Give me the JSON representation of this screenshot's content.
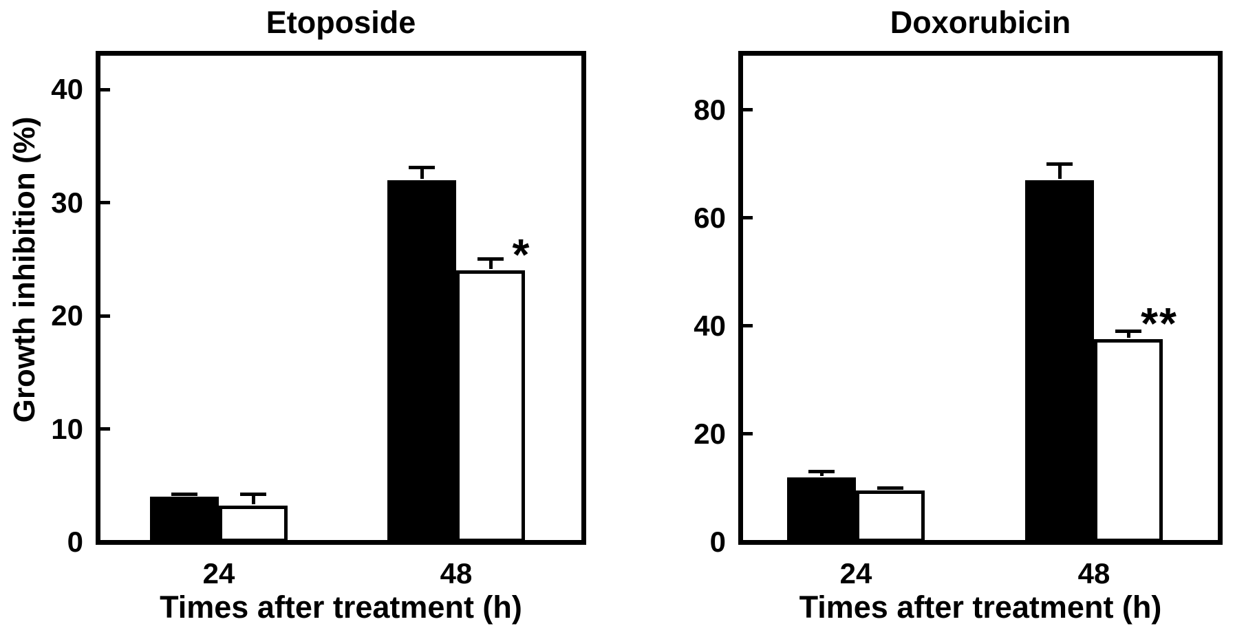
{
  "figure": {
    "background": "#ffffff",
    "bar_outline_color": "#000000",
    "text_color": "#000000"
  },
  "chart_data": [
    {
      "type": "bar",
      "title": "Etoposide",
      "ylabel": "Growth inhibition (%)",
      "xlabel": "Times after treatment (h)",
      "categories": [
        "24",
        "48"
      ],
      "series": [
        {
          "name": "filled-black-bar",
          "fill": "#000000",
          "values": [
            4,
            32
          ],
          "errors": [
            0.2,
            1.1
          ]
        },
        {
          "name": "open-white-bar",
          "fill": "#ffffff",
          "values": [
            3.2,
            24
          ],
          "errors": [
            1.0,
            1.0
          ]
        }
      ],
      "annotations": [
        {
          "category_index": 1,
          "series_index": 1,
          "text": "*"
        }
      ],
      "yticks": [
        0,
        10,
        20,
        30,
        40
      ],
      "ylim": [
        0,
        43
      ],
      "grid": false,
      "legend": "none"
    },
    {
      "type": "bar",
      "title": "Doxorubicin",
      "xlabel": "Times after treatment (h)",
      "categories": [
        "24",
        "48"
      ],
      "series": [
        {
          "name": "filled-black-bar",
          "fill": "#000000",
          "values": [
            12,
            67
          ],
          "errors": [
            1.0,
            3.0
          ]
        },
        {
          "name": "open-white-bar",
          "fill": "#ffffff",
          "values": [
            9.5,
            37.5
          ],
          "errors": [
            0.5,
            1.5
          ]
        }
      ],
      "annotations": [
        {
          "category_index": 1,
          "series_index": 1,
          "text": "**"
        }
      ],
      "yticks": [
        0,
        20,
        40,
        60,
        80
      ],
      "ylim": [
        0,
        90
      ],
      "grid": false,
      "legend": "none"
    }
  ]
}
